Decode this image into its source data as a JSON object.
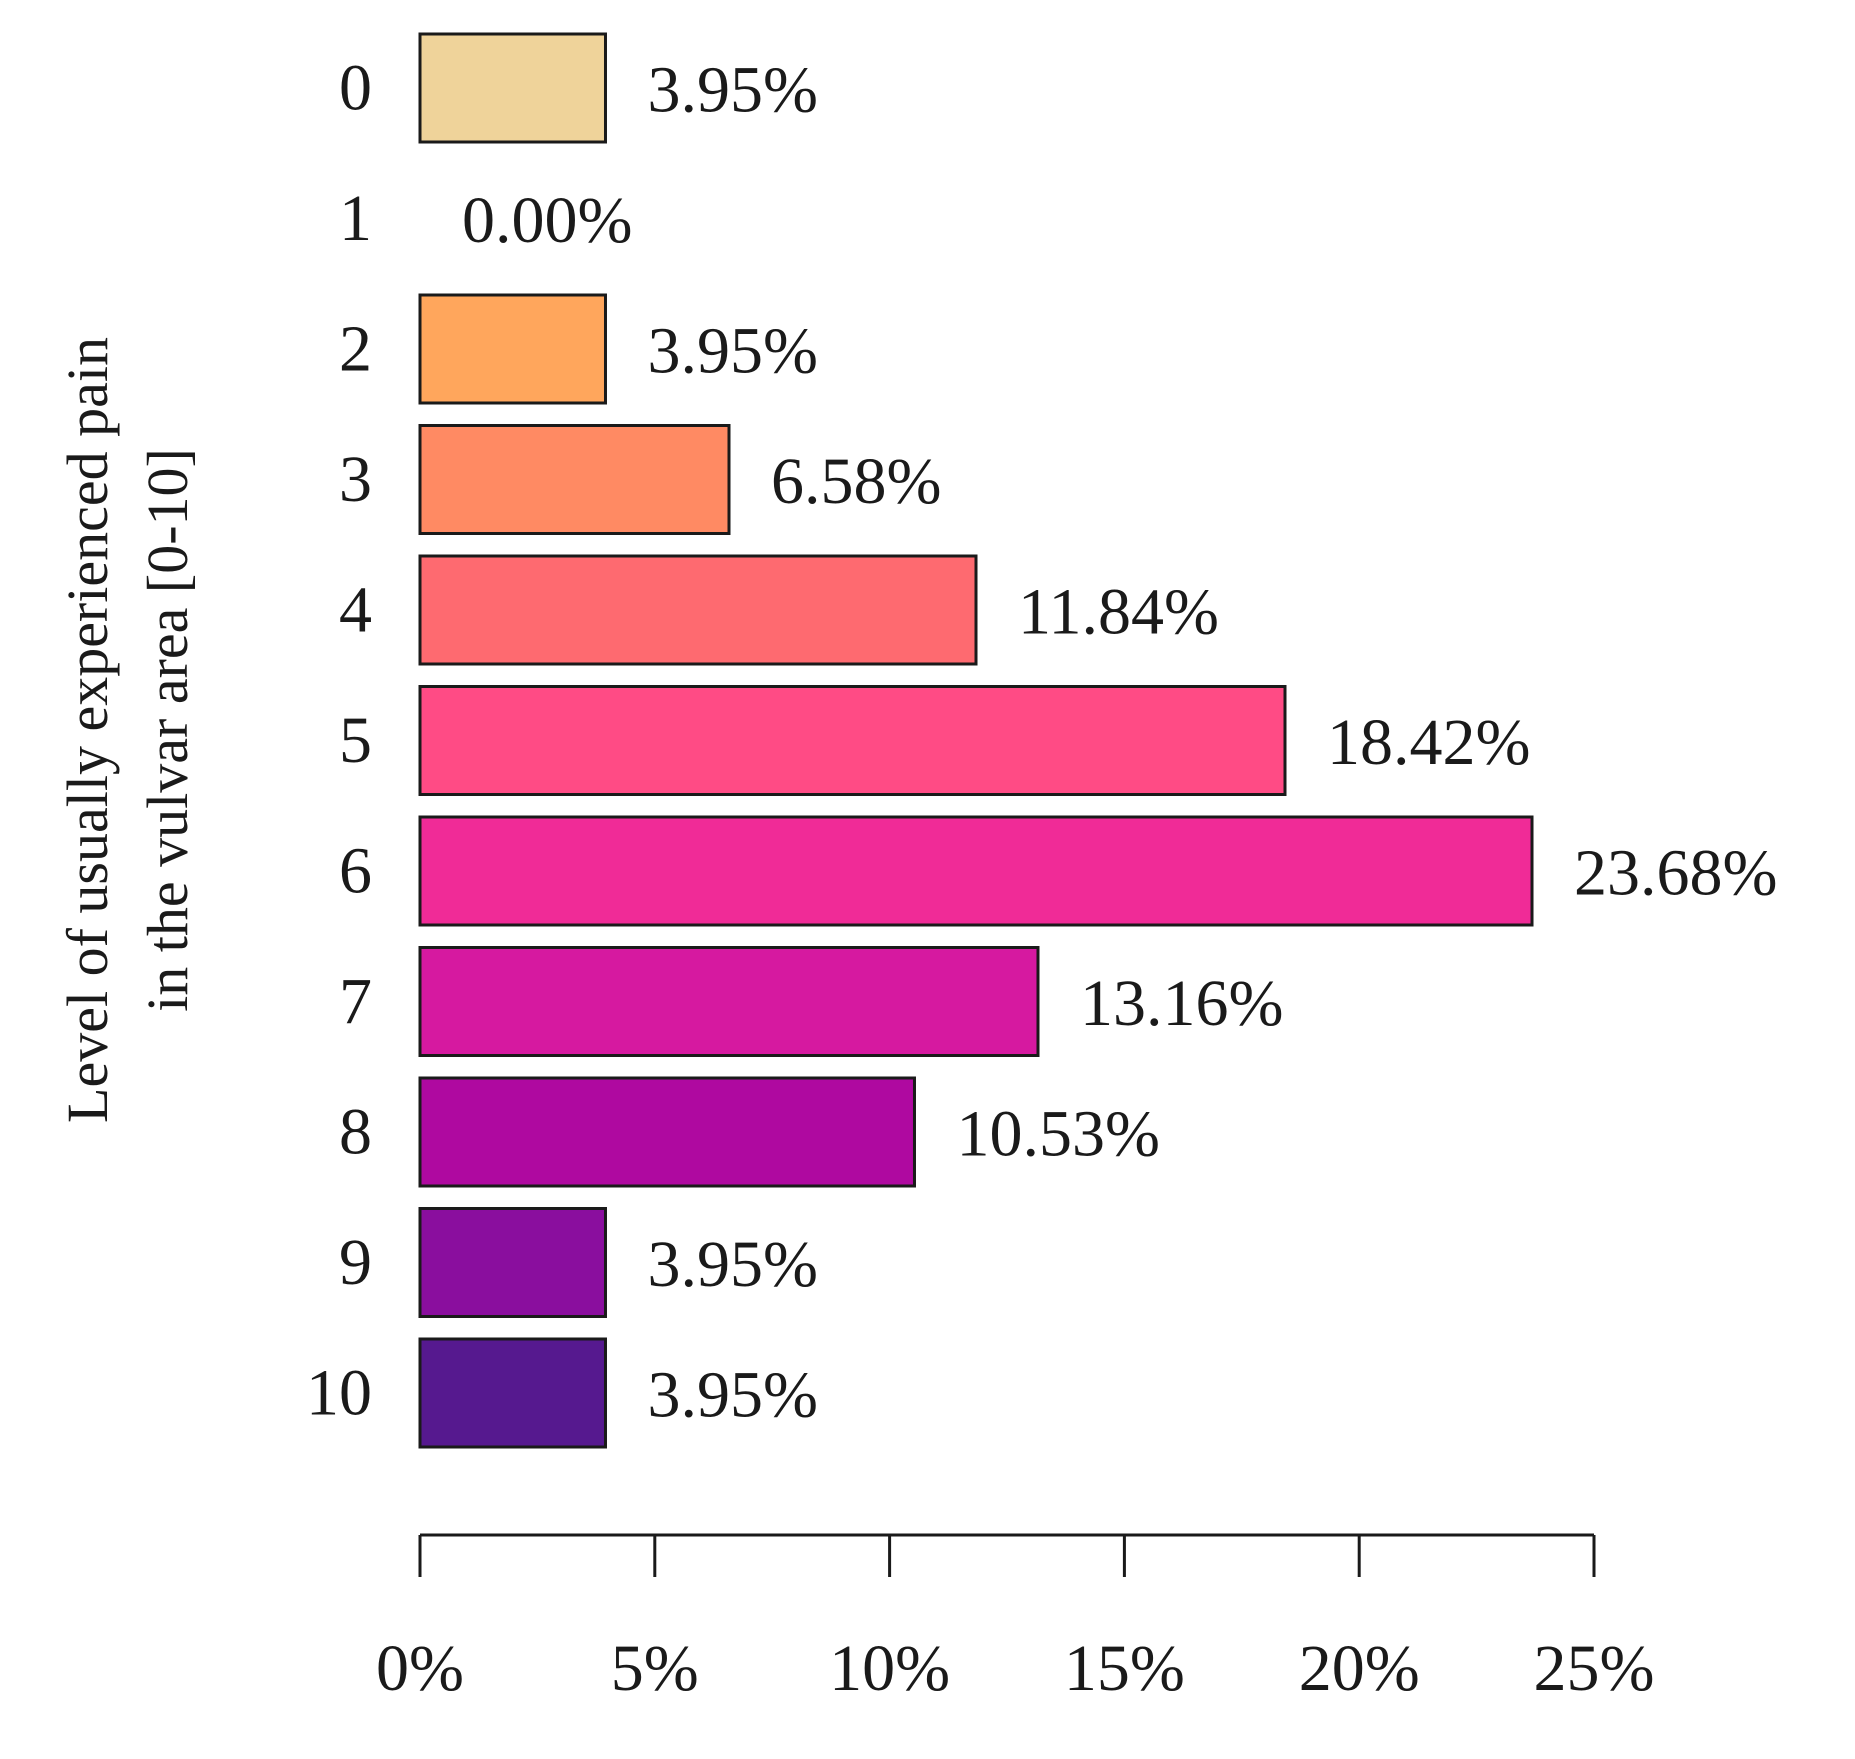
{
  "chart_data": {
    "type": "bar",
    "orientation": "horizontal",
    "ylabel_lines": [
      "Level of usually experienced pain",
      "in the vulvar area [0-10]"
    ],
    "xlabel": "",
    "categories": [
      "0",
      "1",
      "2",
      "3",
      "4",
      "5",
      "6",
      "7",
      "8",
      "9",
      "10"
    ],
    "values": [
      3.95,
      0.0,
      3.95,
      6.58,
      11.84,
      18.42,
      23.68,
      13.16,
      10.53,
      3.95,
      3.95
    ],
    "value_labels": [
      "3.95%",
      "0.00%",
      "3.95%",
      "6.58%",
      "11.84%",
      "18.42%",
      "23.68%",
      "13.16%",
      "10.53%",
      "3.95%",
      "3.95%"
    ],
    "colors": [
      "#EFD39A",
      "#F7C48B",
      "#FFA65C",
      "#FF8A63",
      "#FE6A70",
      "#FF4B85",
      "#F02B97",
      "#D619A0",
      "#AF09A0",
      "#8A0E9E",
      "#56198F"
    ],
    "xlim": [
      0,
      25
    ],
    "xticks": [
      0,
      5,
      10,
      15,
      20,
      25
    ],
    "xtick_labels": [
      "0%",
      "5%",
      "10%",
      "15%",
      "20%",
      "25%"
    ],
    "grid": false,
    "legend": "none"
  }
}
